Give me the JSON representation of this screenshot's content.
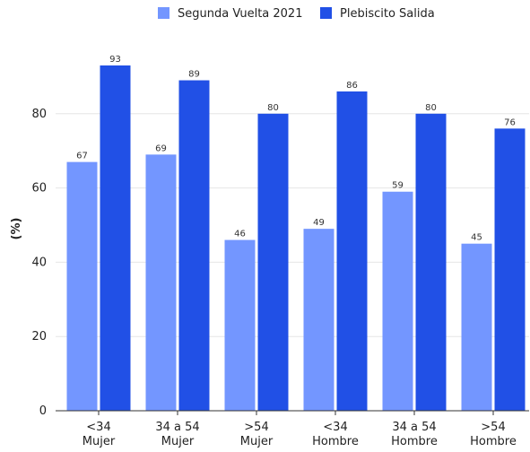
{
  "chart_data": {
    "type": "bar",
    "title": "",
    "xlabel": "",
    "ylabel": "(%)",
    "ylim": [
      0,
      100
    ],
    "yticks": [
      0,
      20,
      40,
      60,
      80
    ],
    "grid": true,
    "legend_position": "top-center",
    "categories": [
      [
        "<34",
        "Mujer"
      ],
      [
        "34 a 54",
        "Mujer"
      ],
      [
        ">54",
        "Mujer"
      ],
      [
        "<34",
        "Hombre"
      ],
      [
        "34 a 54",
        "Hombre"
      ],
      [
        ">54",
        "Hombre"
      ]
    ],
    "series": [
      {
        "name": "Segunda Vuelta 2021",
        "color": "#7396ff",
        "values": [
          67,
          69,
          46,
          49,
          59,
          45
        ]
      },
      {
        "name": "Plebiscito Salida",
        "color": "#2150e6",
        "values": [
          93,
          89,
          80,
          86,
          80,
          76
        ]
      }
    ]
  }
}
